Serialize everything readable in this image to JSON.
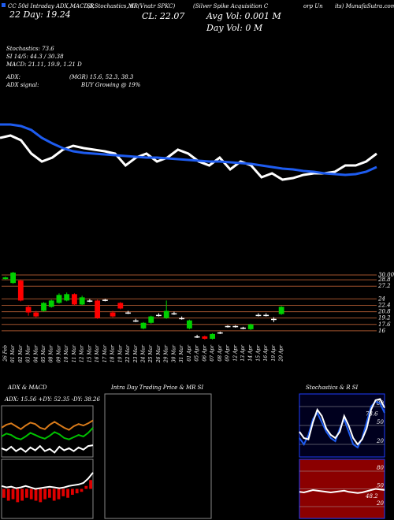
{
  "header": [
    "CC 50d Intraday ADX,MACD,R",
    "SI,Stochastics,MR",
    "SI (Vnatr SPKC)",
    "(Silver Spike Acquisition C",
    "orp Un",
    "its) MunafaSutra.com",
    "22 Day: 19.24",
    "CL: 22.07",
    "Avg Vol: 0.001 M",
    "Day Vol: 0 M",
    "Stochastics: 73.6",
    "SI 14/5: 44.3 / 30.38",
    "MACD: 21.11, 19.9, 1.21 D",
    "ADX:",
    "(MGR) 15.6, 52.3, 38.3",
    "ADX signal:",
    "BUY Growing @ 19%"
  ],
  "chart_data": [
    {
      "type": "line",
      "ylim": [
        18,
        30
      ],
      "series": [
        {
          "color": "#ffffff",
          "values": [
            27.2,
            27.44,
            26.96,
            25.6,
            24.8,
            25.2,
            26,
            26.4,
            26.16,
            26,
            25.84,
            25.6,
            24.4,
            25.2,
            25.6,
            24.8,
            25.2,
            26,
            25.6,
            24.8,
            24.4,
            25.2,
            24,
            24.8,
            24.4,
            23.2,
            23.6,
            22.96,
            23.12,
            23.44,
            23.6,
            23.6,
            23.76,
            24.4,
            24.4,
            24.8,
            25.6
          ]
        },
        {
          "color": "#1e5cf0",
          "values": [
            28.56,
            28.56,
            28.4,
            28,
            27.2,
            26.64,
            26.16,
            25.84,
            25.68,
            25.6,
            25.52,
            25.44,
            25.36,
            25.28,
            25.2,
            25.2,
            25.12,
            25.04,
            24.96,
            24.88,
            24.8,
            24.8,
            24.72,
            24.64,
            24.56,
            24.4,
            24.24,
            24.08,
            24,
            23.84,
            23.76,
            23.6,
            23.52,
            23.44,
            23.52,
            23.76,
            24.24
          ]
        }
      ]
    },
    {
      "type": "candlestick",
      "ylim": [
        13.6,
        30.8
      ],
      "yticks": [
        {
          "value": 30,
          "label": "30.00"
        },
        28.8,
        27.2,
        24,
        22.4,
        20.8,
        19.2,
        17.6,
        16
      ],
      "categories": [
        "26 Feb",
        "01 Mar",
        "02 Mar",
        "03 Mar",
        "04 Mar",
        "05 Mar",
        "08 Mar",
        "09 Mar",
        "10 Mar",
        "11 Mar",
        "12 Mar",
        "15 Mar",
        "16 Mar",
        "17 Mar",
        "18 Mar",
        "19 Mar",
        "22 Mar",
        "23 Mar",
        "24 Mar",
        "25 Mar",
        "26 Mar",
        "29 Mar",
        "30 Mar",
        "31 Mar",
        "01 Apr",
        "05 Apr",
        "06 Apr",
        "07 Apr",
        "08 Apr",
        "09 Apr",
        "12 Apr",
        "13 Apr",
        "14 Apr",
        "15 Apr",
        "16 Apr",
        "19 Apr",
        "20 Apr"
      ],
      "open": [
        29.0,
        28.0,
        28.6,
        22.0,
        20.6,
        21.0,
        22.0,
        23.0,
        23.6,
        25.2,
        22.6,
        23.6,
        23.6,
        23.8,
        20.6,
        23.0,
        20.6,
        18.6,
        16.6,
        18.0,
        20.0,
        19.2,
        20.4,
        19.2,
        16.6,
        14.6,
        14.6,
        14.0,
        15.6,
        17.2,
        17.2,
        16.8,
        16.4,
        20.0,
        20.0,
        19.0,
        20.2
      ],
      "close": [
        29.4,
        30.6,
        23.6,
        20.6,
        19.6,
        23.0,
        23.6,
        25.0,
        25.2,
        22.6,
        24.4,
        23.6,
        19.2,
        23.8,
        19.6,
        21.6,
        20.6,
        18.6,
        18.0,
        19.6,
        20.0,
        21.0,
        20.4,
        19.2,
        18.6,
        14.6,
        14.0,
        15.2,
        15.6,
        17.2,
        17.2,
        16.8,
        17.6,
        20.0,
        20.0,
        19.0,
        22.0
      ],
      "high": [
        29.6,
        30.8,
        28.8,
        22.4,
        21.0,
        23.2,
        23.8,
        25.4,
        25.6,
        25.4,
        24.8,
        24.0,
        23.8,
        24.0,
        21.0,
        23.2,
        21.0,
        19.0,
        18.2,
        19.8,
        20.4,
        23.6,
        20.8,
        19.6,
        18.8,
        15.0,
        14.8,
        15.4,
        15.8,
        17.4,
        17.4,
        17.0,
        17.8,
        20.4,
        20.4,
        19.4,
        22.2
      ],
      "low": [
        28.8,
        27.8,
        23.4,
        19.8,
        19.4,
        20.8,
        21.8,
        22.8,
        23.4,
        22.4,
        22.4,
        23.2,
        19.0,
        23.4,
        19.4,
        21.4,
        20.2,
        18.2,
        16.4,
        17.8,
        19.6,
        19.0,
        20.0,
        18.8,
        16.4,
        14.2,
        13.8,
        13.8,
        15.2,
        16.8,
        16.8,
        16.4,
        16.2,
        19.6,
        19.6,
        18.2,
        20.0
      ]
    },
    {
      "type": "line",
      "title": "ADX & MACD",
      "annotation": "ADX: 15.56 +DY: 52.35 -DY: 38.26",
      "ylim": [
        0,
        70
      ],
      "series": [
        {
          "color": "#00c000",
          "values": [
            28,
            32,
            30,
            26,
            24,
            28,
            33,
            30,
            27,
            25,
            29,
            34,
            31,
            26,
            24,
            27,
            30,
            28,
            33,
            40
          ]
        },
        {
          "color": "#d87a1a",
          "values": [
            40,
            44,
            46,
            42,
            38,
            43,
            47,
            45,
            40,
            38,
            44,
            48,
            44,
            40,
            37,
            42,
            45,
            43,
            46,
            50
          ]
        },
        {
          "color": "#ffffff",
          "values": [
            12,
            9,
            14,
            8,
            12,
            7,
            13,
            9,
            15,
            8,
            11,
            6,
            14,
            9,
            12,
            8,
            13,
            10,
            15,
            16
          ]
        }
      ]
    },
    {
      "type": "macd",
      "ylim": [
        -2,
        2
      ],
      "values": [
        -0.6,
        -0.8,
        -0.7,
        -0.9,
        -0.8,
        -0.6,
        -0.7,
        -0.8,
        -0.9,
        -0.7,
        -0.6,
        -0.8,
        -0.7,
        -0.5,
        -0.6,
        -0.4,
        -0.3,
        -0.2,
        0.2,
        0.6
      ],
      "series": [
        {
          "color": "#ffffff",
          "values": [
            0.2,
            0.1,
            0.15,
            0.05,
            0.1,
            0.2,
            0.1,
            0.0,
            0.05,
            0.1,
            0.15,
            0.1,
            0.05,
            0.1,
            0.2,
            0.25,
            0.3,
            0.4,
            0.7,
            1.1
          ]
        }
      ]
    },
    {
      "type": "empty",
      "title": "Intra Day Trading Price & MR SI"
    },
    {
      "type": "line",
      "title": "Stochastics & R SI",
      "annotation": "73.6",
      "ylim": [
        0,
        100
      ],
      "yticks": [
        20,
        50,
        80
      ],
      "background": "#00001e",
      "series": [
        {
          "color": "#1e5cf0",
          "values": [
            30,
            20,
            35,
            60,
            70,
            55,
            40,
            30,
            25,
            45,
            60,
            40,
            20,
            15,
            30,
            55,
            80,
            88,
            85,
            70
          ]
        },
        {
          "color": "#ffffff",
          "values": [
            40,
            30,
            28,
            55,
            75,
            65,
            45,
            35,
            30,
            40,
            65,
            50,
            30,
            20,
            28,
            45,
            75,
            90,
            92,
            78
          ]
        }
      ]
    },
    {
      "type": "line",
      "annotation": "48.2",
      "ylim": [
        0,
        100
      ],
      "yticks": [
        20,
        50,
        80
      ],
      "background": "#8b0000",
      "series": [
        {
          "color": "#ffffff",
          "values": [
            45,
            44,
            46,
            48,
            47,
            46,
            45,
            44,
            45,
            46,
            47,
            45,
            44,
            43,
            44,
            46,
            48,
            50,
            49,
            48.2
          ]
        }
      ]
    }
  ]
}
